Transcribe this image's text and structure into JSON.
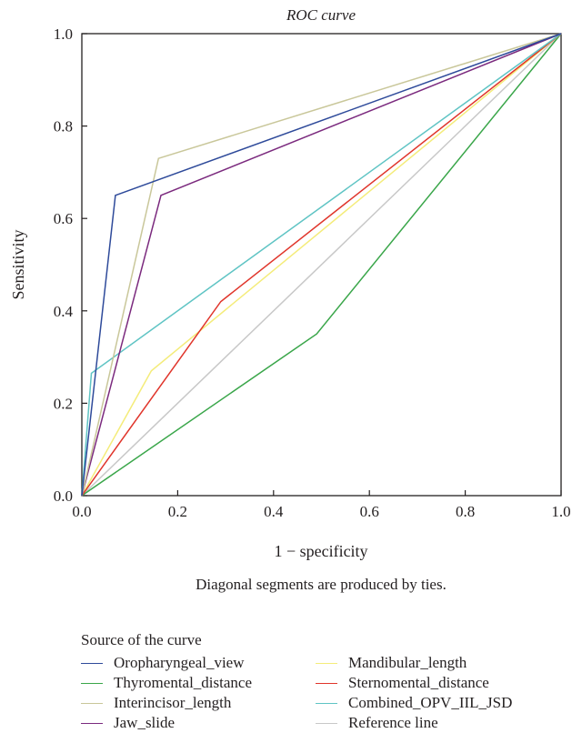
{
  "chart_data": {
    "type": "line",
    "title": "ROC curve",
    "xlabel": "1 − specificity",
    "ylabel": "Sensitivity",
    "note": "Diagonal segments are produced by ties.",
    "xlim": [
      0.0,
      1.0
    ],
    "ylim": [
      0.0,
      1.0
    ],
    "xticks": [
      "0.0",
      "0.2",
      "0.4",
      "0.6",
      "0.8",
      "1.0"
    ],
    "yticks": [
      "0.0",
      "0.2",
      "0.4",
      "0.6",
      "0.8",
      "1.0"
    ],
    "grid": false,
    "legend_title": "Source of the curve",
    "legend_position": "bottom",
    "series": [
      {
        "name": "Oropharyngeal_view",
        "color": "#2e4a9a",
        "x": [
          0,
          0.07,
          1
        ],
        "y": [
          0,
          0.65,
          1
        ]
      },
      {
        "name": "Thyromental_distance",
        "color": "#3aa64a",
        "x": [
          0,
          0.49,
          1
        ],
        "y": [
          0,
          0.35,
          1
        ]
      },
      {
        "name": "Interincisor_length",
        "color": "#c9c79a",
        "x": [
          0,
          0.16,
          1
        ],
        "y": [
          0,
          0.73,
          1
        ]
      },
      {
        "name": "Jaw_slide",
        "color": "#7b2a7e",
        "x": [
          0,
          0.165,
          1
        ],
        "y": [
          0,
          0.65,
          1
        ]
      },
      {
        "name": "Mandibular_length",
        "color": "#f4ec7a",
        "x": [
          0,
          0.145,
          1
        ],
        "y": [
          0,
          0.27,
          1
        ]
      },
      {
        "name": "Sternomental_distance",
        "color": "#e0352b",
        "x": [
          0,
          0.29,
          1
        ],
        "y": [
          0,
          0.42,
          1
        ]
      },
      {
        "name": "Combined_OPV_IIL_JSD",
        "color": "#5fc4c4",
        "x": [
          0,
          0.02,
          1
        ],
        "y": [
          0,
          0.265,
          1
        ]
      },
      {
        "name": "Reference line",
        "color": "#c8c8c8",
        "x": [
          0,
          1
        ],
        "y": [
          0,
          1
        ]
      }
    ]
  }
}
